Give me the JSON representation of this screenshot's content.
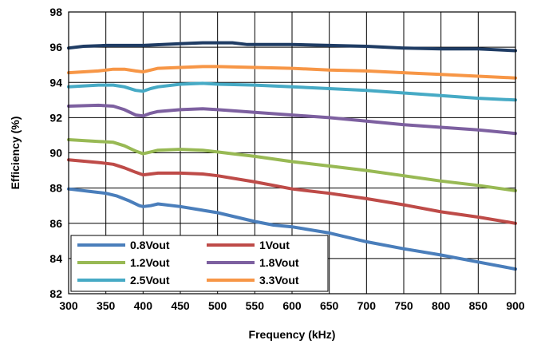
{
  "chart_data": {
    "type": "line",
    "title": "",
    "xlabel": "Frequency (kHz)",
    "ylabel": "Efficiency (%)",
    "xlim": [
      300,
      900
    ],
    "ylim": [
      82,
      98
    ],
    "xticks": [
      "300",
      "350",
      "400",
      "450",
      "500",
      "550",
      "600",
      "650",
      "700",
      "750",
      "800",
      "850",
      "900"
    ],
    "yticks": [
      "82",
      "84",
      "86",
      "88",
      "90",
      "92",
      "94",
      "96",
      "98"
    ],
    "grid": true,
    "legend": "bottom-left",
    "series": [
      {
        "name": "0.8Vout",
        "color": "#4a7ebb",
        "x": [
          300,
          330,
          350,
          365,
          380,
          395,
          400,
          410,
          420,
          450,
          500,
          550,
          575,
          600,
          650,
          700,
          750,
          800,
          850,
          900
        ],
        "y": [
          87.95,
          87.8,
          87.7,
          87.55,
          87.3,
          87.0,
          86.95,
          87.0,
          87.1,
          86.95,
          86.6,
          86.1,
          85.9,
          85.8,
          85.45,
          84.95,
          84.55,
          84.2,
          83.8,
          83.4
        ]
      },
      {
        "name": "1Vout",
        "color": "#be4b48",
        "x": [
          300,
          340,
          360,
          375,
          390,
          400,
          410,
          420,
          450,
          480,
          500,
          550,
          600,
          650,
          700,
          750,
          800,
          850,
          900
        ],
        "y": [
          89.6,
          89.45,
          89.35,
          89.15,
          88.9,
          88.75,
          88.8,
          88.85,
          88.85,
          88.8,
          88.7,
          88.35,
          87.95,
          87.7,
          87.4,
          87.05,
          86.65,
          86.35,
          86.0
        ]
      },
      {
        "name": "1.2Vout",
        "color": "#98b954",
        "x": [
          300,
          340,
          360,
          375,
          390,
          400,
          410,
          420,
          450,
          480,
          500,
          520,
          550,
          600,
          650,
          700,
          750,
          800,
          850,
          900
        ],
        "y": [
          90.75,
          90.65,
          90.6,
          90.4,
          90.1,
          89.95,
          90.05,
          90.15,
          90.2,
          90.15,
          90.05,
          89.95,
          89.8,
          89.5,
          89.25,
          89.0,
          88.7,
          88.4,
          88.15,
          87.85
        ]
      },
      {
        "name": "1.8Vout",
        "color": "#7d60a0",
        "x": [
          300,
          340,
          360,
          375,
          390,
          400,
          410,
          420,
          450,
          480,
          500,
          550,
          600,
          650,
          700,
          750,
          800,
          850,
          900
        ],
        "y": [
          92.65,
          92.7,
          92.65,
          92.45,
          92.15,
          92.1,
          92.25,
          92.35,
          92.45,
          92.5,
          92.45,
          92.3,
          92.15,
          92.0,
          91.8,
          91.6,
          91.45,
          91.3,
          91.1
        ]
      },
      {
        "name": "2.5Vout",
        "color": "#46aac5",
        "x": [
          300,
          340,
          360,
          375,
          390,
          400,
          410,
          420,
          450,
          480,
          500,
          550,
          600,
          650,
          700,
          750,
          800,
          850,
          900
        ],
        "y": [
          93.75,
          93.85,
          93.85,
          93.75,
          93.55,
          93.5,
          93.65,
          93.75,
          93.9,
          93.95,
          93.9,
          93.85,
          93.75,
          93.65,
          93.55,
          93.4,
          93.25,
          93.1,
          93.0
        ]
      },
      {
        "name": "3.3Vout",
        "color": "#f79646",
        "x": [
          300,
          340,
          360,
          375,
          390,
          400,
          410,
          420,
          450,
          480,
          500,
          550,
          600,
          650,
          700,
          750,
          800,
          850,
          900
        ],
        "y": [
          94.55,
          94.65,
          94.75,
          94.75,
          94.65,
          94.6,
          94.7,
          94.8,
          94.85,
          94.9,
          94.9,
          94.85,
          94.8,
          94.7,
          94.65,
          94.55,
          94.45,
          94.35,
          94.25
        ]
      },
      {
        "name": "",
        "color": "#1f3c64",
        "x": [
          300,
          320,
          350,
          400,
          450,
          480,
          520,
          540,
          550,
          600,
          650,
          700,
          750,
          800,
          850,
          900
        ],
        "y": [
          95.95,
          96.05,
          96.1,
          96.1,
          96.2,
          96.25,
          96.25,
          96.15,
          96.15,
          96.15,
          96.1,
          96.05,
          95.95,
          95.9,
          95.9,
          95.8
        ]
      }
    ]
  }
}
